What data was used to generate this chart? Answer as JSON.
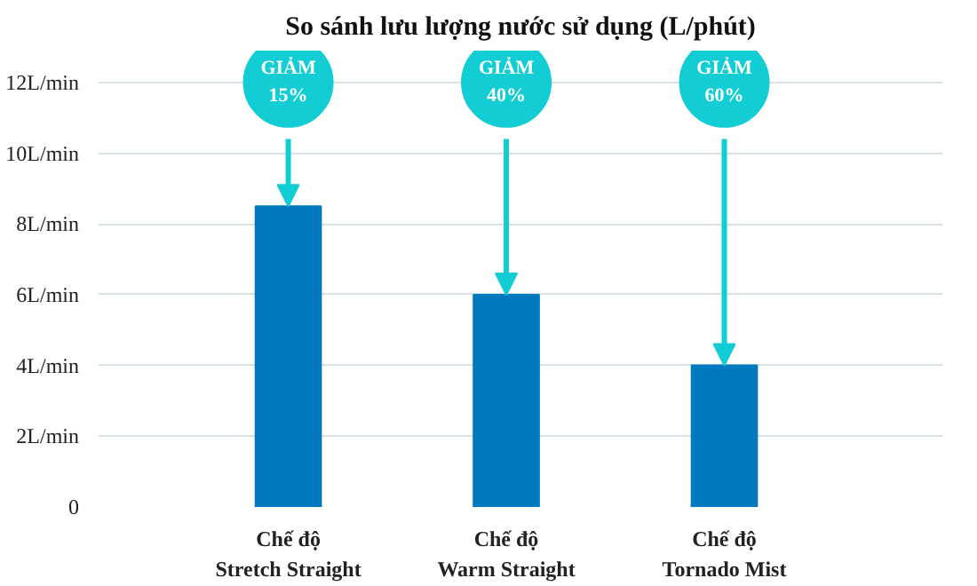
{
  "chart_data": {
    "type": "bar",
    "title": "So sánh lưu lượng nước sử dụng (L/phút)",
    "categories": [
      "Chế độ\nStretch Straight",
      "Chế độ\nWarm Straight",
      "Chế độ\nTornado Mist"
    ],
    "values": [
      8.5,
      6,
      4
    ],
    "color": "#0079be",
    "ylim": [
      0,
      12
    ],
    "yticks": [
      0,
      {
        "value": 2,
        "label": "2L/min"
      },
      {
        "value": 4,
        "label": "4L/min"
      },
      {
        "value": 6,
        "label": "6L/min"
      },
      {
        "value": 8,
        "label": "8L/min"
      },
      {
        "value": 10,
        "label": "10L/min"
      },
      {
        "value": 12,
        "label": "12L/min"
      }
    ],
    "grid": "y",
    "annotations": [
      "GIẢM 15%",
      "GIẢM 40%",
      "GIẢM 60%"
    ]
  }
}
